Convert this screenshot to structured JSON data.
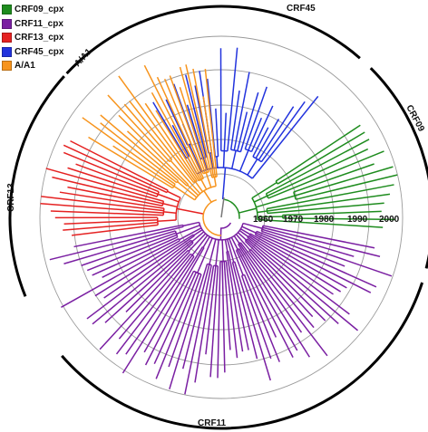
{
  "legend": [
    {
      "label": "CRF09_cpx",
      "color": "#1e8c1e"
    },
    {
      "label": "CRF11_cpx",
      "color": "#7a1fa2"
    },
    {
      "label": "CRF13_cpx",
      "color": "#e52222"
    },
    {
      "label": "CRF45_cpx",
      "color": "#2233dd"
    },
    {
      "label": "A/A1",
      "color": "#f7941d"
    }
  ],
  "years": [
    "1960",
    "1970",
    "1980",
    "1990",
    "2000"
  ],
  "clades": {
    "crf45": "CRF45",
    "crf09": "CRF09",
    "crf11": "CRF11",
    "crf13": "CRF13",
    "aa1": "A/A1"
  },
  "colors": {
    "ring": "#9a9a9a",
    "arc": "#000000",
    "root": "#777777"
  }
}
